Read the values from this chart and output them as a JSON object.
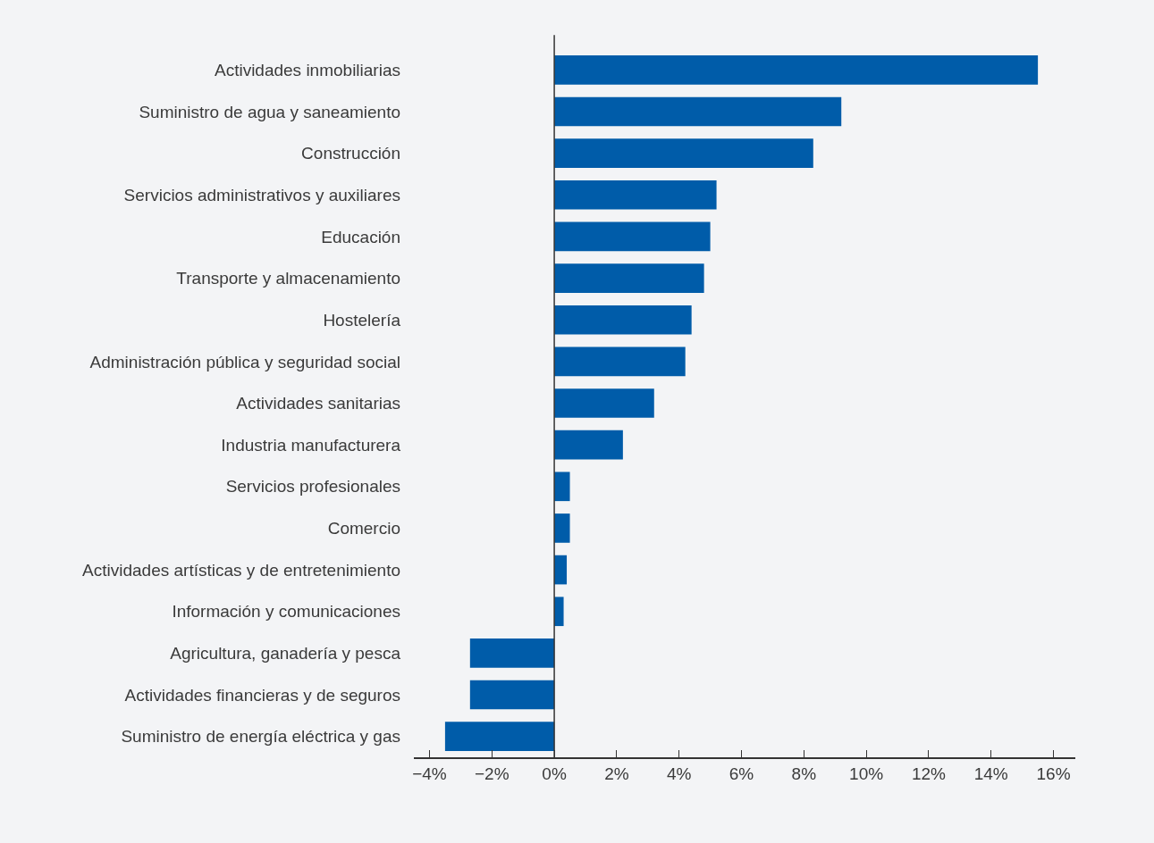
{
  "chart_data": {
    "type": "bar",
    "orientation": "horizontal",
    "color": "#005ca9",
    "categories": [
      "Actividades inmobiliarias",
      "Suministro de agua y saneamiento",
      "Construcción",
      "Servicios administrativos y auxiliares",
      "Educación",
      "Transporte y almacenamiento",
      "Hostelería",
      "Administración pública y seguridad social",
      "Actividades sanitarias",
      "Industria manufacturera",
      "Servicios profesionales",
      "Comercio",
      "Actividades artísticas y de entretenimiento",
      "Información y comunicaciones",
      "Agricultura, ganadería y pesca",
      "Actividades financieras y de seguros",
      "Suministro de energía eléctrica y gas"
    ],
    "values": [
      15.5,
      9.2,
      8.3,
      5.2,
      5.0,
      4.8,
      4.4,
      4.2,
      3.2,
      2.2,
      0.5,
      0.5,
      0.4,
      0.3,
      -2.7,
      -2.7,
      -3.5
    ],
    "xlim": [
      -4.5,
      16.7
    ],
    "xticks": [
      {
        "value": -4,
        "label": "−4%"
      },
      {
        "value": -2,
        "label": "−2%"
      },
      {
        "value": 0,
        "label": "0%"
      },
      {
        "value": 2,
        "label": "2%"
      },
      {
        "value": 4,
        "label": "4%"
      },
      {
        "value": 6,
        "label": "6%"
      },
      {
        "value": 8,
        "label": "8%"
      },
      {
        "value": 10,
        "label": "10%"
      },
      {
        "value": 12,
        "label": "12%"
      },
      {
        "value": 14,
        "label": "14%"
      },
      {
        "value": 16,
        "label": "16%"
      }
    ],
    "ref_lines": [
      {
        "axis": "x",
        "value": 0,
        "color": "#333333"
      }
    ]
  }
}
